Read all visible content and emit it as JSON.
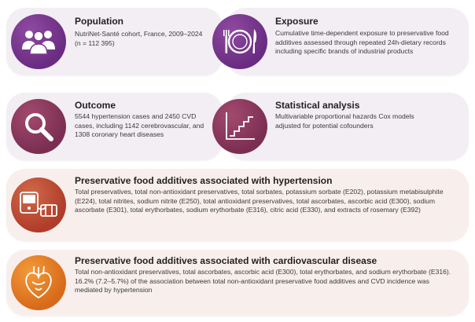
{
  "population": {
    "title": "Population",
    "text": "NutriNet-Santé cohort, France, 2009–2024 (n = 112 395)"
  },
  "exposure": {
    "title": "Exposure",
    "text": "Cumulative time-dependent exposure to preservative food additives assessed through repeated 24h-dietary records including specific brands of industrial products"
  },
  "outcome": {
    "title": "Outcome",
    "text": "5544 hypertension cases and 2450 CVD cases, including 1142 cerebrovascular, and 1308 coronary heart diseases"
  },
  "analysis": {
    "title": "Statistical analysis",
    "text": "Multivariable proportional hazards Cox models adjusted for potential cofounders"
  },
  "hypertension": {
    "title": "Preservative food additives associated with hypertension",
    "text": "Total preservatives, total non-antioxidant preservatives, total sorbates, potassium sorbate (E202), potassium metabisulphite (E224), total nitrites, sodium nitrite (E250), total antioxidant preservatives, total ascorbates, ascorbic acid (E300), sodium ascorbate (E301), total erythorbates, sodium erythorbate (E316), citric acid (E330), and extracts of rosemary (E392)"
  },
  "cvd": {
    "title": "Preservative food additives associated with cardiovascular disease",
    "text": "Total non-antioxidant preservatives, total ascorbates, ascorbic acid (E300), total erythorbates, and sodium erythorbate (E316). 16.2% (7.2–5.7%) of the association between total non-antioxidant preservative food additives and CVD incidence was mediated by hypertension"
  },
  "icons": [
    "people-icon",
    "plate-cutlery-icon",
    "magnifier-icon",
    "staircase-chart-icon",
    "blood-pressure-monitor-icon",
    "heart-icon"
  ],
  "colors": {
    "purple": "#6a2c82",
    "maroon": "#7b2e52",
    "red": "#b03c2a",
    "amber": "#d86a1a",
    "card_purple": "#f3eef4",
    "card_orange": "#f8efec"
  }
}
